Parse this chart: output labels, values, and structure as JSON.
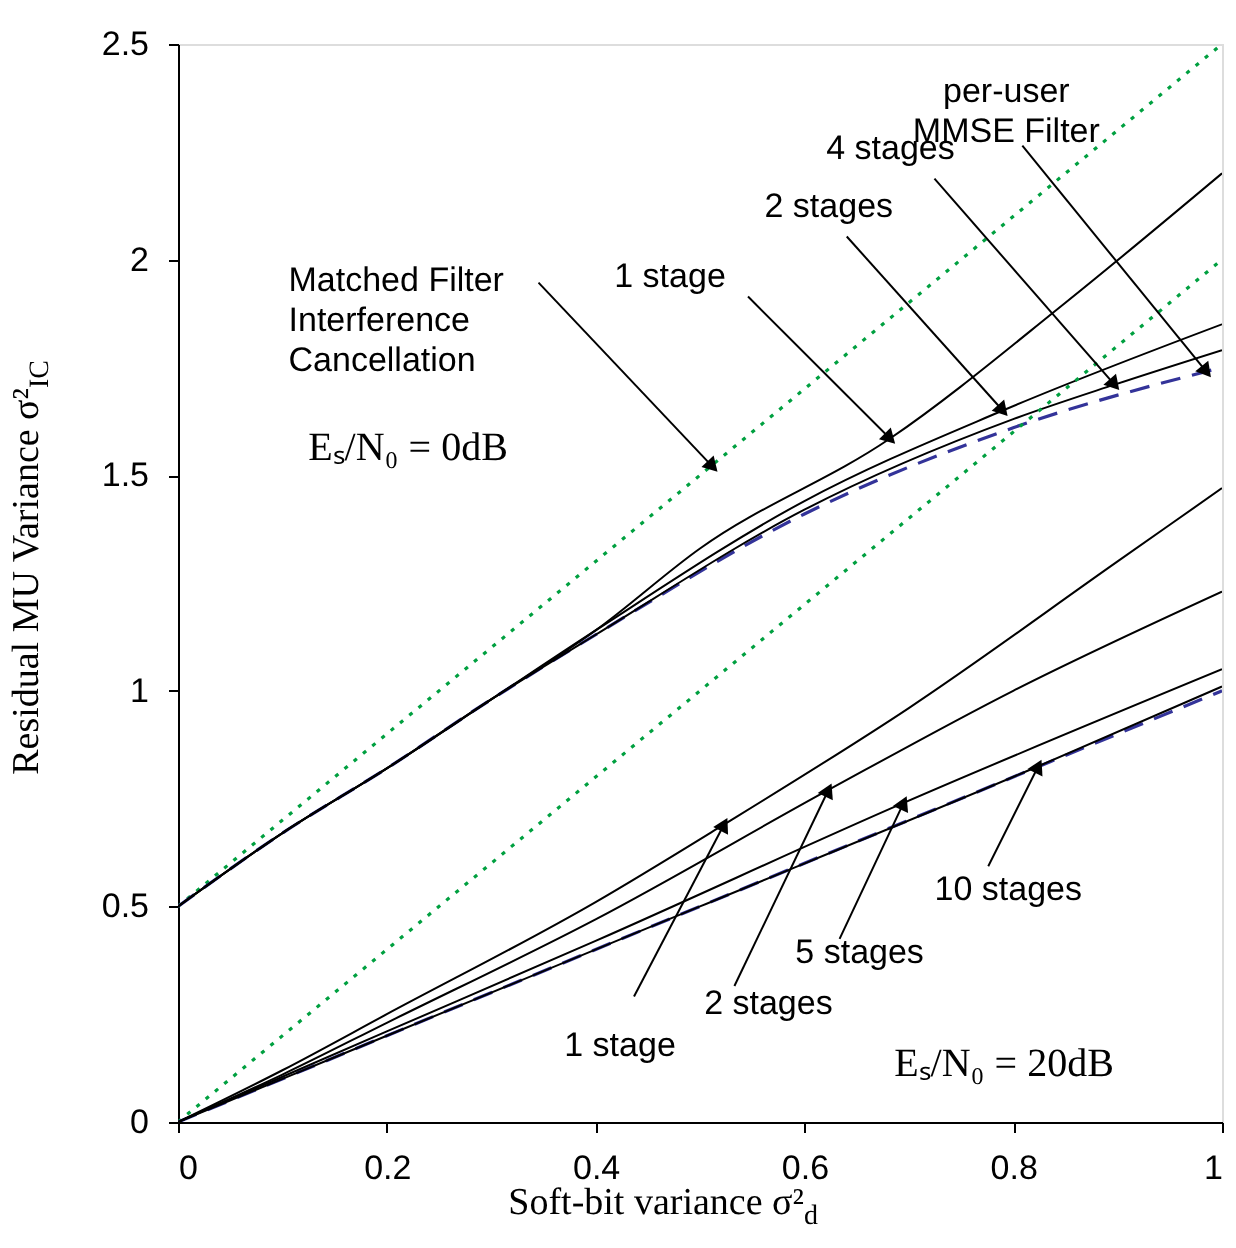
{
  "chart_data": {
    "type": "line",
    "xlabel": "Soft-bit variance σ²$_{d}$",
    "ylabel": "Residual MU Variance σ²$_{IC}$",
    "xlim": [
      0,
      1
    ],
    "ylim": [
      0,
      2.5
    ],
    "xticks": [
      0,
      0.2,
      0.4,
      0.6,
      0.8,
      1
    ],
    "yticks": [
      0,
      0.5,
      1,
      1.5,
      2,
      2.5
    ],
    "grid": false,
    "series": [
      {
        "color": "#00a040",
        "line_style": "dotted",
        "x": [
          0,
          1
        ],
        "values": [
          0.5,
          2.5
        ]
      },
      {
        "color": "#333399",
        "line_style": "dashed",
        "x": [
          0,
          0.1,
          0.2,
          0.3,
          0.4,
          0.6,
          0.8,
          1
        ],
        "values": [
          0.5,
          0.67,
          0.82,
          0.98,
          1.13,
          1.41,
          1.61,
          1.75
        ]
      },
      {
        "color": "#000000",
        "line_style": "solid",
        "x": [
          0,
          0.1,
          0.2,
          0.3,
          0.4,
          0.5,
          0.682,
          0.85,
          1
        ],
        "values": [
          0.5,
          0.67,
          0.82,
          0.98,
          1.14,
          1.33,
          1.585,
          1.9,
          2.2
        ]
      },
      {
        "color": "#000000",
        "line_style": "solid",
        "x": [
          0,
          0.1,
          0.2,
          0.3,
          0.4,
          0.6,
          0.79,
          1
        ],
        "values": [
          0.5,
          0.67,
          0.82,
          0.98,
          1.14,
          1.44,
          1.65,
          1.85
        ]
      },
      {
        "color": "#000000",
        "line_style": "solid",
        "x": [
          0,
          0.1,
          0.2,
          0.3,
          0.4,
          0.6,
          0.8,
          0.897,
          1
        ],
        "values": [
          0.5,
          0.67,
          0.82,
          0.98,
          1.13,
          1.42,
          1.63,
          1.71,
          1.79
        ]
      },
      {
        "color": "#00a040",
        "line_style": "dotted",
        "x": [
          0,
          1
        ],
        "values": [
          0,
          2
        ]
      },
      {
        "color": "#333399",
        "line_style": "dashed",
        "x": [
          0,
          0.5,
          1
        ],
        "values": [
          0,
          0.5,
          1
        ]
      },
      {
        "color": "#000000",
        "line_style": "solid",
        "x": [
          0,
          0.1,
          0.2,
          0.4,
          0.523,
          0.7,
          0.9,
          1
        ],
        "values": [
          0,
          0.12,
          0.25,
          0.51,
          0.69,
          0.96,
          1.3,
          1.47
        ]
      },
      {
        "color": "#000000",
        "line_style": "solid",
        "x": [
          0,
          0.1,
          0.2,
          0.4,
          0.623,
          0.8,
          1
        ],
        "values": [
          0,
          0.11,
          0.23,
          0.47,
          0.77,
          1.0,
          1.23
        ]
      },
      {
        "color": "#000000",
        "line_style": "solid",
        "x": [
          0,
          0.1,
          0.2,
          0.4,
          0.695,
          1
        ],
        "values": [
          0,
          0.105,
          0.21,
          0.42,
          0.74,
          1.05
        ]
      },
      {
        "color": "#000000",
        "line_style": "solid",
        "x": [
          0,
          0.1,
          0.2,
          0.5,
          0.824,
          1
        ],
        "values": [
          0,
          0.1,
          0.2,
          0.5,
          0.825,
          1.01
        ]
      }
    ],
    "annotations": [
      {
        "text": "Matched Filter\nInterference\nCancellation",
        "x": 0.512,
        "y": 1.52
      },
      {
        "text": "1 stage",
        "x": 0.682,
        "y": 1.585
      },
      {
        "text": "2 stages",
        "x": 0.79,
        "y": 1.65
      },
      {
        "text": "4 stages",
        "x": 0.897,
        "y": 1.71
      },
      {
        "text": "per-user\nMMSE Filter",
        "x": 0.985,
        "y": 1.74
      },
      {
        "text": "1 stage",
        "x": 0.523,
        "y": 0.69
      },
      {
        "text": "2 stages",
        "x": 0.623,
        "y": 0.77
      },
      {
        "text": "5 stages",
        "x": 0.695,
        "y": 0.74
      },
      {
        "text": "10 stages",
        "x": 0.824,
        "y": 0.825
      },
      "Eₛ/N₀ = 0dB",
      "Eₛ/N₀ = 20dB"
    ]
  }
}
